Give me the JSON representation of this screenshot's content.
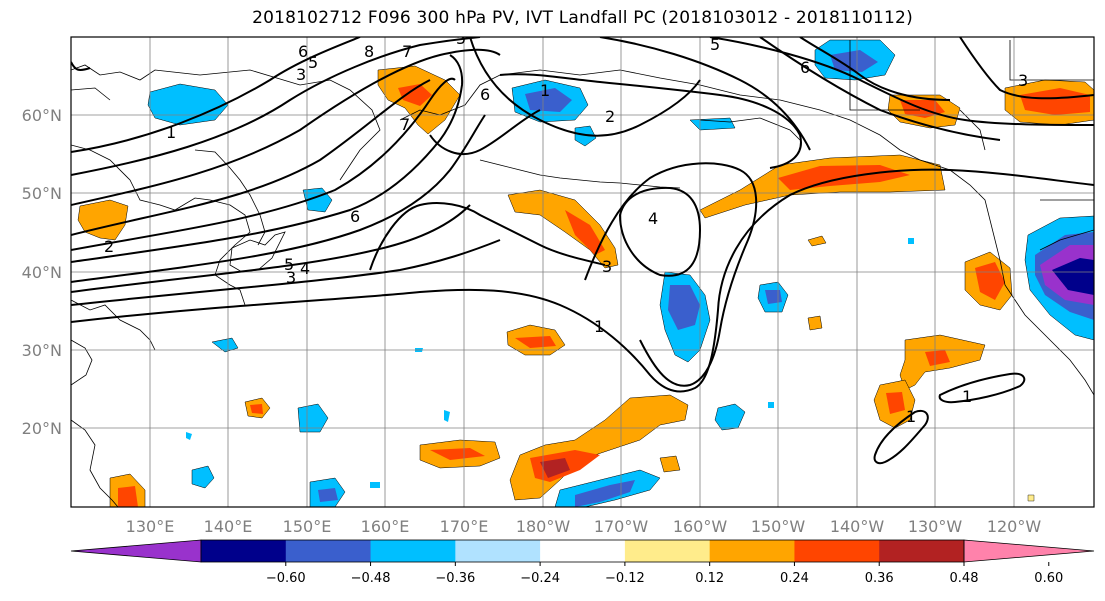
{
  "title": "2018102712 F096 300 hPa PV, IVT Landfall PC (2018103012 - 2018110112)",
  "lat_labels": [
    "60°N",
    "50°N",
    "40°N",
    "30°N",
    "20°N"
  ],
  "lon_labels": [
    "130°E",
    "140°E",
    "150°E",
    "160°E",
    "170°E",
    "180°W",
    "170°W",
    "160°W",
    "150°W",
    "140°W",
    "130°W",
    "120°W"
  ],
  "colorbar": {
    "colors": [
      "#9932cc",
      "#00008b",
      "#3a5fcd",
      "#00bfff",
      "#b0e2ff",
      "#ffffff",
      "#ffec8b",
      "#ffa500",
      "#ff4500",
      "#b22222",
      "#ff82ab"
    ],
    "ticks": [
      "−0.60",
      "−0.48",
      "−0.36",
      "−0.24",
      "−0.12",
      "0.12",
      "0.24",
      "0.36",
      "0.48",
      "0.60"
    ]
  },
  "contour_labels": [
    "6",
    "8",
    "7",
    "5",
    "5",
    "3",
    "1",
    "7",
    "6",
    "1",
    "2",
    "6",
    "6",
    "3",
    "5",
    "4",
    "3",
    "2",
    "4",
    "3",
    "1",
    "1",
    "1",
    "5"
  ]
}
